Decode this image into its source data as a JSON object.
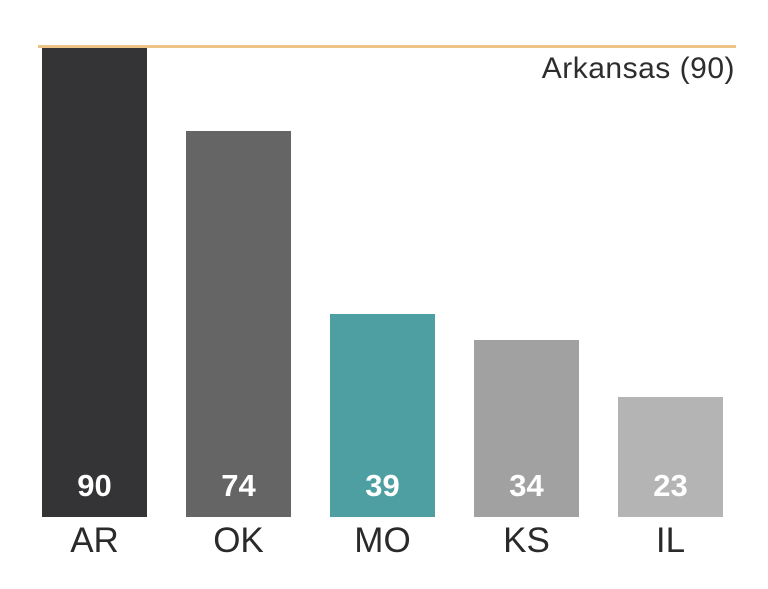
{
  "chart_data": {
    "type": "bar",
    "categories": [
      "AR",
      "OK",
      "MO",
      "KS",
      "IL"
    ],
    "values": [
      90,
      74,
      39,
      34,
      23
    ],
    "bar_colors": [
      "#343437",
      "#656565",
      "#4D9FA1",
      "#A1A1A1",
      "#B4B4B4"
    ],
    "value_label_color": "#FFFFFF",
    "title": "",
    "xlabel": "",
    "ylabel": "",
    "ylim": [
      0,
      90
    ],
    "grid": false,
    "legend": "none",
    "value_labels_inside_bars": true,
    "reference_line": {
      "value": 90,
      "label": "Arkansas (90)",
      "color": "#EDC486"
    },
    "text_color": "#2D2D2D",
    "background_color": "#FFFFFF"
  }
}
